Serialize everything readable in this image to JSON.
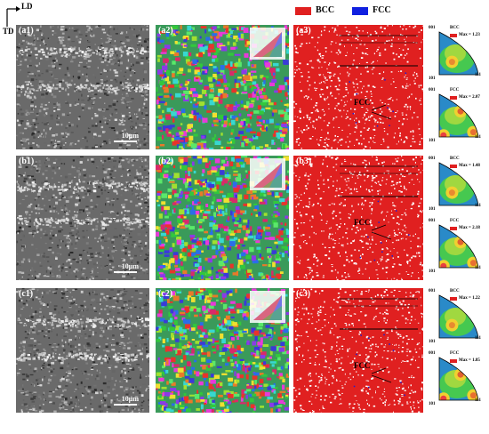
{
  "axes": {
    "vertical": "TD",
    "horizontal": "LD"
  },
  "legend": [
    {
      "label": "BCC",
      "color": "#e02020"
    },
    {
      "label": "FCC",
      "color": "#1020e0"
    }
  ],
  "rows": [
    {
      "sem": "(a1)",
      "ipf_map": "(a2)",
      "phase": "(a3)",
      "scale": "10μm",
      "bcc_pf": {
        "label": "BCC",
        "max": "Max = 1.23"
      },
      "fcc_pf": {
        "label": "FCC",
        "max": "Max = 2.07"
      },
      "fcc_note": "FCC"
    },
    {
      "sem": "(b1)",
      "ipf_map": "(b2)",
      "phase": "(b3)",
      "scale": "10μm",
      "bcc_pf": {
        "label": "BCC",
        "max": "Max = 1.48"
      },
      "fcc_pf": {
        "label": "FCC",
        "max": "Max = 2.18"
      },
      "fcc_note": "FCC"
    },
    {
      "sem": "(c1)",
      "ipf_map": "(c2)",
      "phase": "(c3)",
      "scale": "10μm",
      "bcc_pf": {
        "label": "BCC",
        "max": "Max = 1.22"
      },
      "fcc_pf": {
        "label": "FCC",
        "max": "Max = 1.85"
      },
      "fcc_note": "FCC"
    }
  ],
  "ipf_corners": {
    "top": "001",
    "bottom_left": "101",
    "bottom_right": "111"
  },
  "colors": {
    "phase_bcc": "#e02020",
    "phase_fcc": "#1020e0",
    "sem_bg": "#6a6a6a"
  }
}
